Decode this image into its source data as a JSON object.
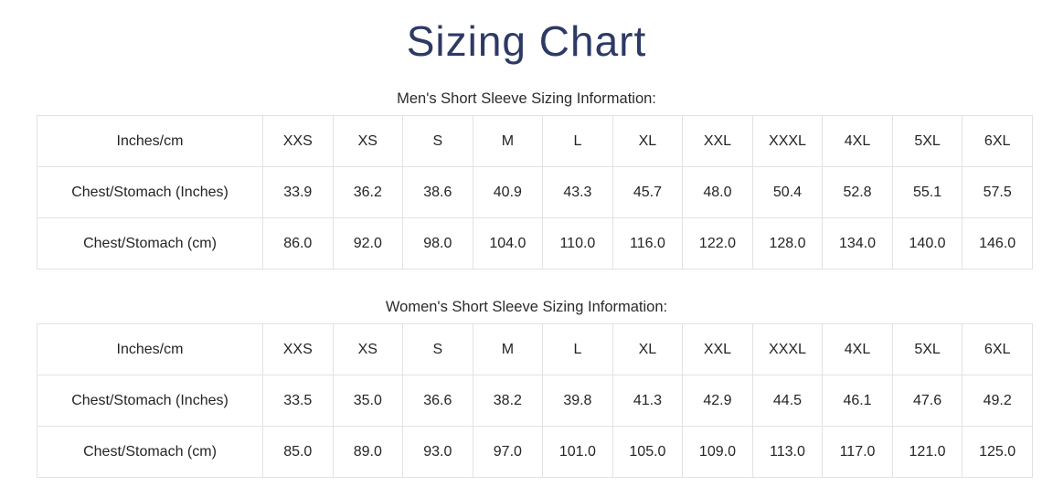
{
  "page": {
    "title": "Sizing Chart"
  },
  "colors": {
    "title": "#2d3a66",
    "text": "#282828",
    "border": "#e2e2e2",
    "background": "#ffffff"
  },
  "tables": [
    {
      "section_title": "Men's Short Sleeve Sizing Information:",
      "header_label": "Inches/cm",
      "sizes": [
        "XXS",
        "XS",
        "S",
        "M",
        "L",
        "XL",
        "XXL",
        "XXXL",
        "4XL",
        "5XL",
        "6XL"
      ],
      "rows": [
        {
          "label": "Chest/Stomach (Inches)",
          "values": [
            "33.9",
            "36.2",
            "38.6",
            "40.9",
            "43.3",
            "45.7",
            "48.0",
            "50.4",
            "52.8",
            "55.1",
            "57.5"
          ]
        },
        {
          "label": "Chest/Stomach (cm)",
          "values": [
            "86.0",
            "92.0",
            "98.0",
            "104.0",
            "110.0",
            "116.0",
            "122.0",
            "128.0",
            "134.0",
            "140.0",
            "146.0"
          ]
        }
      ]
    },
    {
      "section_title": "Women's Short Sleeve Sizing Information:",
      "header_label": "Inches/cm",
      "sizes": [
        "XXS",
        "XS",
        "S",
        "M",
        "L",
        "XL",
        "XXL",
        "XXXL",
        "4XL",
        "5XL",
        "6XL"
      ],
      "rows": [
        {
          "label": "Chest/Stomach (Inches)",
          "values": [
            "33.5",
            "35.0",
            "36.6",
            "38.2",
            "39.8",
            "41.3",
            "42.9",
            "44.5",
            "46.1",
            "47.6",
            "49.2"
          ]
        },
        {
          "label": "Chest/Stomach (cm)",
          "values": [
            "85.0",
            "89.0",
            "93.0",
            "97.0",
            "101.0",
            "105.0",
            "109.0",
            "113.0",
            "117.0",
            "121.0",
            "125.0"
          ]
        }
      ]
    }
  ]
}
